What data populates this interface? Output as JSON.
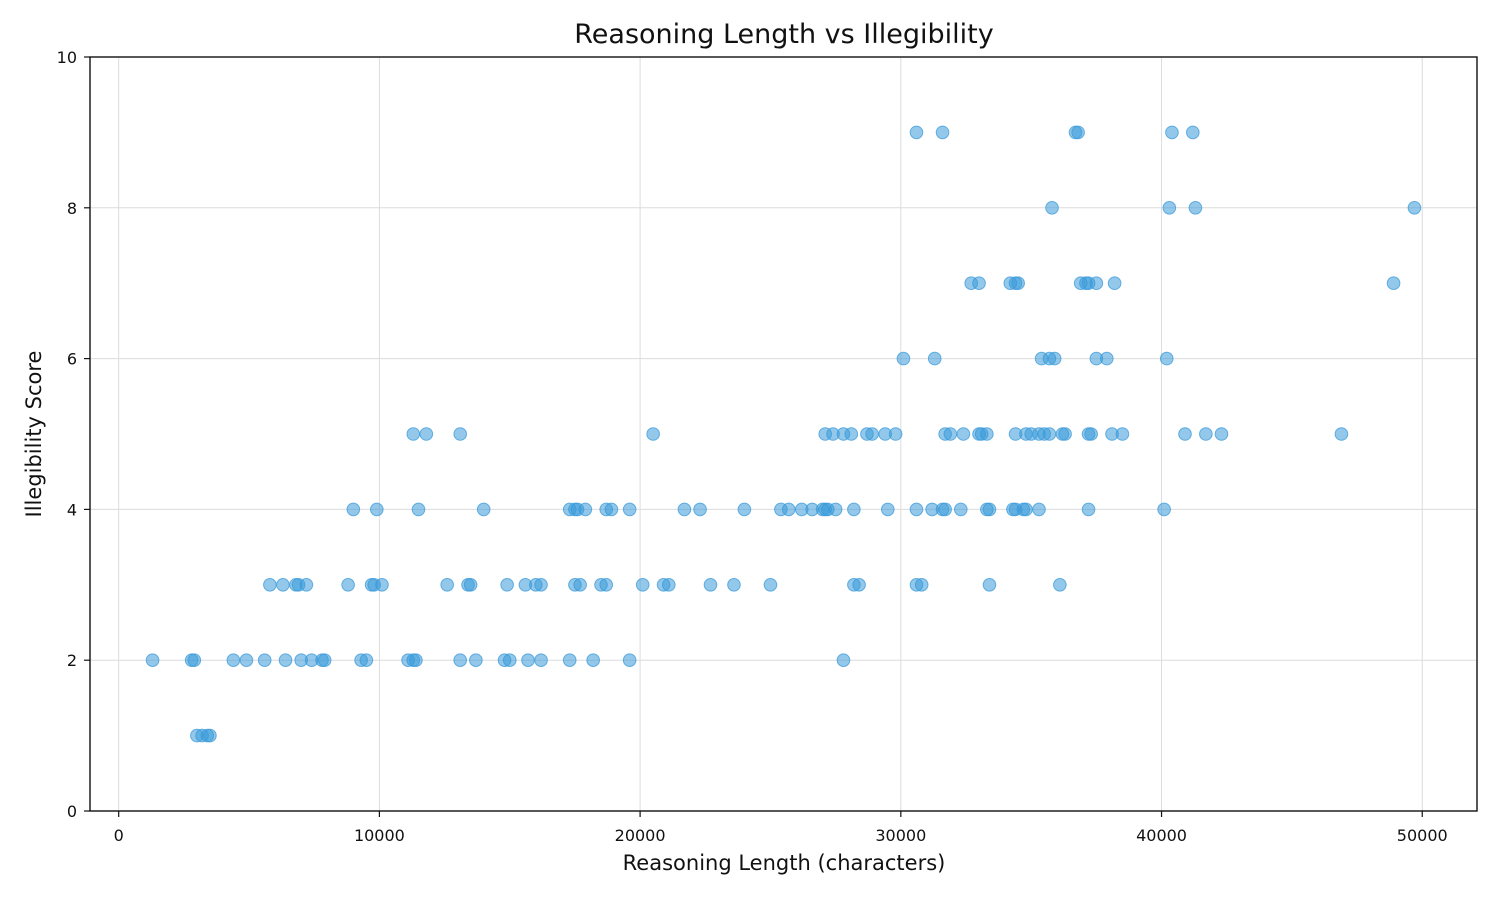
{
  "chart_data": {
    "type": "scatter",
    "title": "Reasoning Length vs Illegibility",
    "xlabel": "Reasoning Length (characters)",
    "ylabel": "Illegibility Score",
    "xlim": [
      -1100,
      52100
    ],
    "ylim": [
      0,
      10
    ],
    "xticks": [
      0,
      10000,
      20000,
      30000,
      40000,
      50000
    ],
    "yticks": [
      0,
      2,
      4,
      6,
      8,
      10
    ],
    "grid": true,
    "color": "#3a9ad9",
    "points": [
      [
        1300,
        2
      ],
      [
        2800,
        2
      ],
      [
        2900,
        2
      ],
      [
        4400,
        2
      ],
      [
        4900,
        2
      ],
      [
        5600,
        2
      ],
      [
        6400,
        2
      ],
      [
        7000,
        2
      ],
      [
        7400,
        2
      ],
      [
        7800,
        2
      ],
      [
        7900,
        2
      ],
      [
        9300,
        2
      ],
      [
        9500,
        2
      ],
      [
        11100,
        2
      ],
      [
        11300,
        2
      ],
      [
        11400,
        2
      ],
      [
        13100,
        2
      ],
      [
        13700,
        2
      ],
      [
        14800,
        2
      ],
      [
        15000,
        2
      ],
      [
        15700,
        2
      ],
      [
        16200,
        2
      ],
      [
        17300,
        2
      ],
      [
        18200,
        2
      ],
      [
        19600,
        2
      ],
      [
        27800,
        2
      ],
      [
        3000,
        1
      ],
      [
        3200,
        1
      ],
      [
        3400,
        1
      ],
      [
        3500,
        1
      ],
      [
        5800,
        3
      ],
      [
        6300,
        3
      ],
      [
        6800,
        3
      ],
      [
        6900,
        3
      ],
      [
        7200,
        3
      ],
      [
        8800,
        3
      ],
      [
        9700,
        3
      ],
      [
        9800,
        3
      ],
      [
        10100,
        3
      ],
      [
        12600,
        3
      ],
      [
        13400,
        3
      ],
      [
        13500,
        3
      ],
      [
        14900,
        3
      ],
      [
        15600,
        3
      ],
      [
        16000,
        3
      ],
      [
        16200,
        3
      ],
      [
        17500,
        3
      ],
      [
        17700,
        3
      ],
      [
        18500,
        3
      ],
      [
        18700,
        3
      ],
      [
        20100,
        3
      ],
      [
        20900,
        3
      ],
      [
        21100,
        3
      ],
      [
        22700,
        3
      ],
      [
        23600,
        3
      ],
      [
        25000,
        3
      ],
      [
        28200,
        3
      ],
      [
        28400,
        3
      ],
      [
        30600,
        3
      ],
      [
        30800,
        3
      ],
      [
        33400,
        3
      ],
      [
        36100,
        3
      ],
      [
        9000,
        4
      ],
      [
        9900,
        4
      ],
      [
        11500,
        4
      ],
      [
        14000,
        4
      ],
      [
        17300,
        4
      ],
      [
        17500,
        4
      ],
      [
        17600,
        4
      ],
      [
        17900,
        4
      ],
      [
        18700,
        4
      ],
      [
        18900,
        4
      ],
      [
        19600,
        4
      ],
      [
        21700,
        4
      ],
      [
        22300,
        4
      ],
      [
        24000,
        4
      ],
      [
        25400,
        4
      ],
      [
        25700,
        4
      ],
      [
        26200,
        4
      ],
      [
        26600,
        4
      ],
      [
        27000,
        4
      ],
      [
        27100,
        4
      ],
      [
        27200,
        4
      ],
      [
        27500,
        4
      ],
      [
        28200,
        4
      ],
      [
        29500,
        4
      ],
      [
        30600,
        4
      ],
      [
        31200,
        4
      ],
      [
        31600,
        4
      ],
      [
        31700,
        4
      ],
      [
        32300,
        4
      ],
      [
        33300,
        4
      ],
      [
        33400,
        4
      ],
      [
        34300,
        4
      ],
      [
        34400,
        4
      ],
      [
        34700,
        4
      ],
      [
        34800,
        4
      ],
      [
        35300,
        4
      ],
      [
        37200,
        4
      ],
      [
        40100,
        4
      ],
      [
        11300,
        5
      ],
      [
        11800,
        5
      ],
      [
        13100,
        5
      ],
      [
        20500,
        5
      ],
      [
        27100,
        5
      ],
      [
        27400,
        5
      ],
      [
        27800,
        5
      ],
      [
        28100,
        5
      ],
      [
        28700,
        5
      ],
      [
        28900,
        5
      ],
      [
        29400,
        5
      ],
      [
        29800,
        5
      ],
      [
        31700,
        5
      ],
      [
        31900,
        5
      ],
      [
        32400,
        5
      ],
      [
        33000,
        5
      ],
      [
        33100,
        5
      ],
      [
        33300,
        5
      ],
      [
        34400,
        5
      ],
      [
        34800,
        5
      ],
      [
        35000,
        5
      ],
      [
        35300,
        5
      ],
      [
        35500,
        5
      ],
      [
        35700,
        5
      ],
      [
        36200,
        5
      ],
      [
        36300,
        5
      ],
      [
        37200,
        5
      ],
      [
        37300,
        5
      ],
      [
        38100,
        5
      ],
      [
        38500,
        5
      ],
      [
        40900,
        5
      ],
      [
        41700,
        5
      ],
      [
        42300,
        5
      ],
      [
        46900,
        5
      ],
      [
        30100,
        6
      ],
      [
        31300,
        6
      ],
      [
        35400,
        6
      ],
      [
        35700,
        6
      ],
      [
        35900,
        6
      ],
      [
        37500,
        6
      ],
      [
        37900,
        6
      ],
      [
        40200,
        6
      ],
      [
        32700,
        7
      ],
      [
        33000,
        7
      ],
      [
        34200,
        7
      ],
      [
        34400,
        7
      ],
      [
        34500,
        7
      ],
      [
        36900,
        7
      ],
      [
        37100,
        7
      ],
      [
        37200,
        7
      ],
      [
        37500,
        7
      ],
      [
        38200,
        7
      ],
      [
        48900,
        7
      ],
      [
        35800,
        8
      ],
      [
        40300,
        8
      ],
      [
        41300,
        8
      ],
      [
        49700,
        8
      ],
      [
        30600,
        9
      ],
      [
        31600,
        9
      ],
      [
        36700,
        9
      ],
      [
        36800,
        9
      ],
      [
        40400,
        9
      ],
      [
        41200,
        9
      ]
    ]
  }
}
